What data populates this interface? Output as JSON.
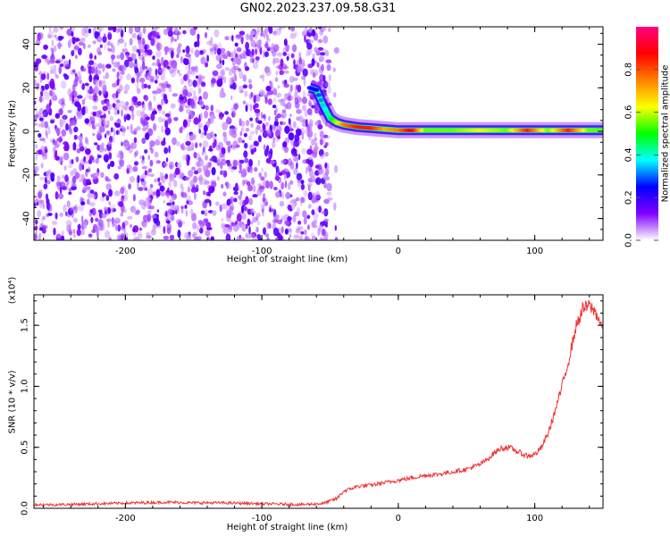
{
  "title": "GN02.2023.237.09.58.G31",
  "chart_data": [
    {
      "type": "heatmap",
      "xlabel": "Height of straight line (km)",
      "ylabel": "Frequency (Hz)",
      "xlim": [
        -267,
        150
      ],
      "ylim": [
        -50,
        48
      ],
      "x_ticks": [
        -200,
        -100,
        0,
        100
      ],
      "x_tick_labels": [
        "-200",
        "-100",
        "0",
        "100"
      ],
      "y_ticks": [
        -40,
        -20,
        0,
        20,
        40
      ],
      "y_tick_labels": [
        "-40",
        "-20",
        "0",
        "20",
        "40"
      ],
      "colorbar": {
        "label": "Normalized spectral amplitude",
        "range": [
          0,
          1
        ],
        "ticks": [
          0.0,
          0.2,
          0.4,
          0.6,
          0.8
        ],
        "tick_labels": [
          "0.0",
          "0.2",
          "0.4",
          "0.6",
          "0.8"
        ],
        "colors": [
          "#ffffff",
          "#8000ff",
          "#0000ff",
          "#00ffff",
          "#00ff00",
          "#ffff00",
          "#ff8000",
          "#ff0000",
          "#ff0080"
        ]
      },
      "noise_region": {
        "x_range": [
          -267,
          -50
        ],
        "y_range": [
          -50,
          48
        ],
        "level": 0.15
      },
      "ridge_points": [
        {
          "x": -65,
          "y": 20,
          "amp": 0.2
        },
        {
          "x": -60,
          "y": 19,
          "amp": 0.25
        },
        {
          "x": -55,
          "y": 12,
          "amp": 0.35
        },
        {
          "x": -50,
          "y": 6,
          "amp": 0.45
        },
        {
          "x": -45,
          "y": 4,
          "amp": 0.6
        },
        {
          "x": -40,
          "y": 3,
          "amp": 0.75
        },
        {
          "x": -30,
          "y": 2,
          "amp": 0.85
        },
        {
          "x": -20,
          "y": 1.5,
          "amp": 0.85
        },
        {
          "x": -10,
          "y": 1,
          "amp": 0.7
        },
        {
          "x": 0,
          "y": 0.5,
          "amp": 0.75
        },
        {
          "x": 10,
          "y": 0.5,
          "amp": 0.9
        },
        {
          "x": 20,
          "y": 0.5,
          "amp": 0.55
        },
        {
          "x": 40,
          "y": 0.5,
          "amp": 0.55
        },
        {
          "x": 60,
          "y": 0.5,
          "amp": 0.62
        },
        {
          "x": 80,
          "y": 0.5,
          "amp": 0.55
        },
        {
          "x": 95,
          "y": 0.5,
          "amp": 0.85
        },
        {
          "x": 110,
          "y": 0.5,
          "amp": 0.55
        },
        {
          "x": 125,
          "y": 0.5,
          "amp": 0.85
        },
        {
          "x": 140,
          "y": 0.5,
          "amp": 0.55
        },
        {
          "x": 150,
          "y": 0.5,
          "amp": 0.55
        }
      ]
    },
    {
      "type": "line",
      "xlabel": "Height of straight line (km)",
      "ylabel": "SNR (10 * v/v)",
      "multiplier_label": "(x10⁴)",
      "xlim": [
        -267,
        150
      ],
      "ylim": [
        0,
        1.75
      ],
      "x_ticks": [
        -200,
        -100,
        0,
        100
      ],
      "x_tick_labels": [
        "-200",
        "-100",
        "0",
        "100"
      ],
      "y_ticks": [
        0.0,
        0.5,
        1.0,
        1.5
      ],
      "y_tick_labels": [
        "0.0",
        "0.5",
        "1.0",
        "1.5"
      ],
      "series": [
        {
          "color": "#ee3333",
          "x": [
            -267,
            -250,
            -230,
            -210,
            -190,
            -170,
            -150,
            -130,
            -110,
            -90,
            -70,
            -55,
            -45,
            -40,
            -35,
            -30,
            -20,
            -10,
            0,
            10,
            20,
            30,
            40,
            50,
            60,
            65,
            70,
            75,
            80,
            85,
            90,
            95,
            100,
            105,
            110,
            115,
            120,
            125,
            130,
            135,
            140,
            145,
            150
          ],
          "values": [
            0.03,
            0.03,
            0.035,
            0.04,
            0.045,
            0.05,
            0.045,
            0.045,
            0.04,
            0.035,
            0.03,
            0.04,
            0.08,
            0.14,
            0.16,
            0.18,
            0.19,
            0.21,
            0.23,
            0.25,
            0.27,
            0.28,
            0.3,
            0.32,
            0.36,
            0.4,
            0.45,
            0.49,
            0.5,
            0.48,
            0.45,
            0.43,
            0.44,
            0.5,
            0.62,
            0.8,
            1.0,
            1.22,
            1.48,
            1.63,
            1.66,
            1.6,
            1.47
          ]
        }
      ]
    }
  ]
}
